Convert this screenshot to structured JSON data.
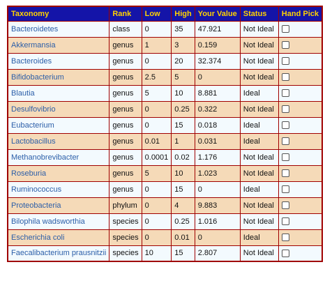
{
  "table": {
    "headers": {
      "taxonomy": "Taxonomy",
      "rank": "Rank",
      "low": "Low",
      "high": "High",
      "value": "Your Value",
      "status": "Status",
      "pick": "Hand Pick"
    },
    "rows": [
      {
        "taxonomy": "Bacteroidetes",
        "rank": "class",
        "low": "0",
        "high": "35",
        "value": "47.921",
        "status": "Not Ideal",
        "picked": false
      },
      {
        "taxonomy": "Akkermansia",
        "rank": "genus",
        "low": "1",
        "high": "3",
        "value": "0.159",
        "status": "Not Ideal",
        "picked": false
      },
      {
        "taxonomy": "Bacteroides",
        "rank": "genus",
        "low": "0",
        "high": "20",
        "value": "32.374",
        "status": "Not Ideal",
        "picked": false
      },
      {
        "taxonomy": "Bifidobacterium",
        "rank": "genus",
        "low": "2.5",
        "high": "5",
        "value": "0",
        "status": "Not Ideal",
        "picked": false
      },
      {
        "taxonomy": "Blautia",
        "rank": "genus",
        "low": "5",
        "high": "10",
        "value": "8.881",
        "status": "Ideal",
        "picked": false
      },
      {
        "taxonomy": "Desulfovibrio",
        "rank": "genus",
        "low": "0",
        "high": "0.25",
        "value": "0.322",
        "status": "Not Ideal",
        "picked": false
      },
      {
        "taxonomy": "Eubacterium",
        "rank": "genus",
        "low": "0",
        "high": "15",
        "value": "0.018",
        "status": "Ideal",
        "picked": false
      },
      {
        "taxonomy": "Lactobacillus",
        "rank": "genus",
        "low": "0.01",
        "high": "1",
        "value": "0.031",
        "status": "Ideal",
        "picked": false
      },
      {
        "taxonomy": "Methanobrevibacter",
        "rank": "genus",
        "low": "0.0001",
        "high": "0.02",
        "value": "1.176",
        "status": "Not Ideal",
        "picked": false
      },
      {
        "taxonomy": "Roseburia",
        "rank": "genus",
        "low": "5",
        "high": "10",
        "value": "1.023",
        "status": "Not Ideal",
        "picked": false
      },
      {
        "taxonomy": "Ruminococcus",
        "rank": "genus",
        "low": "0",
        "high": "15",
        "value": "0",
        "status": "Ideal",
        "picked": false
      },
      {
        "taxonomy": "Proteobacteria",
        "rank": "phylum",
        "low": "0",
        "high": "4",
        "value": "9.883",
        "status": "Not Ideal",
        "picked": false
      },
      {
        "taxonomy": "Bilophila wadsworthia",
        "rank": "species",
        "low": "0",
        "high": "0.25",
        "value": "1.016",
        "status": "Not Ideal",
        "picked": false
      },
      {
        "taxonomy": "Escherichia coli",
        "rank": "species",
        "low": "0",
        "high": "0.01",
        "value": "0",
        "status": "Ideal",
        "picked": false
      },
      {
        "taxonomy": "Faecalibacterium prausnitzii",
        "rank": "species",
        "low": "10",
        "high": "15",
        "value": "2.807",
        "status": "Not Ideal",
        "picked": false
      }
    ]
  },
  "colors": {
    "header_bg": "#1414a8",
    "header_text": "#ffd200",
    "border": "#a00000",
    "row_light": "#f3fafe",
    "row_dark": "#f5dab8",
    "link": "#2b5ea8"
  }
}
